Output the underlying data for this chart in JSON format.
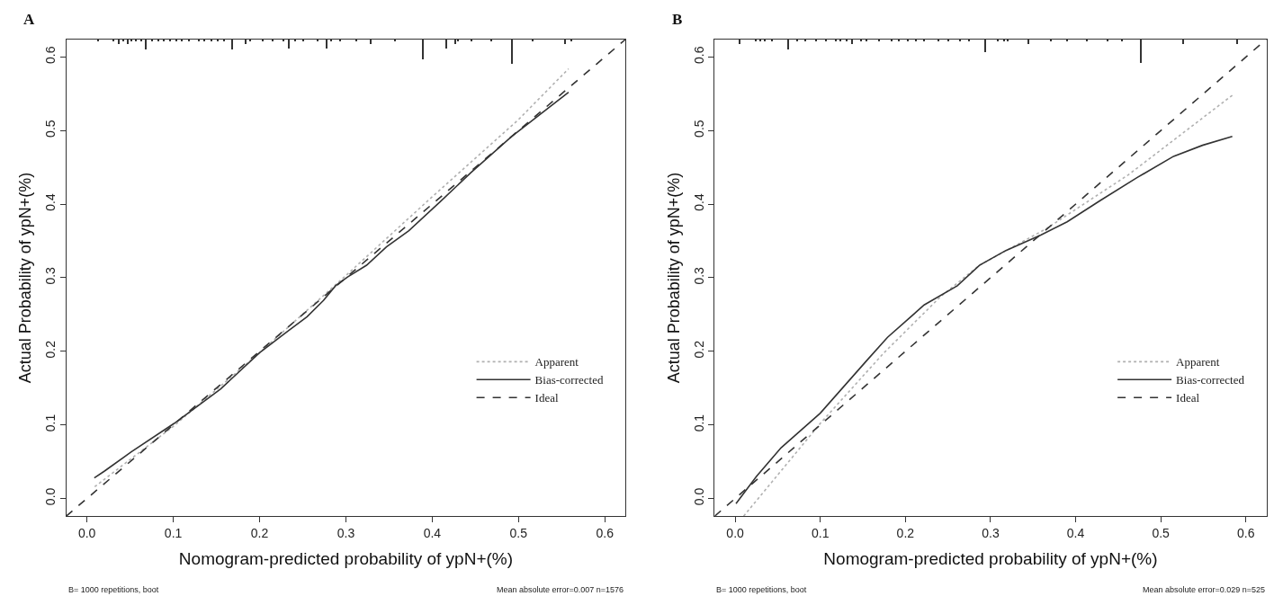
{
  "chart_data": [
    {
      "type": "line",
      "title": "A",
      "xlabel": "Nomogram-predicted probability of ypN+(%)",
      "ylabel": "Actual Probability of ypN+(%)",
      "xlim": [
        -0.024,
        0.624
      ],
      "ylim": [
        -0.024,
        0.624
      ],
      "xticks": [
        {
          "value": 0,
          "label": "0.0"
        },
        0.1,
        0.2,
        0.3,
        0.4,
        0.5,
        0.6
      ],
      "yticks": [
        {
          "value": 0,
          "label": "0.0"
        },
        0.1,
        0.2,
        0.3,
        0.4,
        0.5,
        0.6
      ],
      "legend": "bottom right",
      "marker": "none",
      "annotations": [
        "B= 1000 repetitions, boot",
        "Mean absolute error=0.007 n=1576"
      ],
      "series": [
        {
          "name": "Apparent",
          "color": "#b0b0b0",
          "line_style": "dotted",
          "x": [
            0.009,
            0.1,
            0.2,
            0.3,
            0.4,
            0.5,
            0.558
          ],
          "values": [
            0.016,
            0.098,
            0.198,
            0.303,
            0.41,
            0.515,
            0.584
          ]
        },
        {
          "name": "Bias-corrected",
          "color": "#333333",
          "line_style": "solid",
          "x": [
            0.0085,
            0.02,
            0.051,
            0.101,
            0.155,
            0.2,
            0.231,
            0.255,
            0.274,
            0.288,
            0.302,
            0.324,
            0.347,
            0.373,
            0.409,
            0.445,
            0.492,
            0.558
          ],
          "values": [
            0.028,
            0.037,
            0.063,
            0.102,
            0.149,
            0.198,
            0.226,
            0.247,
            0.269,
            0.289,
            0.301,
            0.317,
            0.342,
            0.364,
            0.403,
            0.443,
            0.492,
            0.552
          ]
        },
        {
          "name": "Ideal",
          "color": "#333333",
          "line_style": "dashed",
          "x": [
            -0.024,
            0.624
          ],
          "values": [
            -0.024,
            0.624
          ]
        },
        {
          "type": "bar",
          "color": "#333333",
          "x": [
            0.013,
            0.03,
            0.037,
            0.042,
            0.047,
            0.051,
            0.056,
            0.063,
            0.068,
            0.075,
            0.082,
            0.089,
            0.096,
            0.103,
            0.11,
            0.118,
            0.129,
            0.136,
            0.144,
            0.151,
            0.158,
            0.168,
            0.184,
            0.189,
            0.203,
            0.215,
            0.227,
            0.234,
            0.241,
            0.25,
            0.267,
            0.277,
            0.283,
            0.293,
            0.312,
            0.328,
            0.357,
            0.389,
            0.416,
            0.426,
            0.43,
            0.445,
            0.468,
            0.492,
            0.516,
            0.554,
            0.561
          ],
          "values": [
            -0.003,
            -0.003,
            -0.006,
            -0.003,
            -0.006,
            -0.003,
            -0.003,
            -0.003,
            -0.014,
            -0.003,
            -0.003,
            -0.003,
            -0.003,
            -0.003,
            -0.003,
            -0.003,
            -0.003,
            -0.003,
            -0.003,
            -0.003,
            -0.003,
            -0.014,
            -0.006,
            -0.003,
            -0.003,
            -0.003,
            -0.003,
            -0.012,
            -0.003,
            -0.003,
            -0.003,
            -0.012,
            -0.003,
            -0.003,
            -0.003,
            -0.006,
            -0.003,
            -0.027,
            -0.012,
            -0.006,
            -0.003,
            -0.003,
            -0.003,
            -0.033,
            -0.003,
            -0.006,
            -0.003
          ],
          "base": [
            0.624,
            0.624,
            0.624,
            0.624,
            0.624,
            0.624,
            0.624,
            0.624,
            0.624,
            0.624,
            0.624,
            0.624,
            0.624,
            0.624,
            0.624,
            0.624,
            0.624,
            0.624,
            0.624,
            0.624,
            0.624,
            0.624,
            0.624,
            0.624,
            0.624,
            0.624,
            0.624,
            0.624,
            0.624,
            0.624,
            0.624,
            0.624,
            0.624,
            0.624,
            0.624,
            0.624,
            0.624,
            0.624,
            0.624,
            0.624,
            0.624,
            0.624,
            0.624,
            0.624,
            0.624,
            0.624,
            0.624
          ]
        }
      ]
    },
    {
      "type": "line",
      "title": "B",
      "xlabel": "Nomogram-predicted probability of ypN+(%)",
      "ylabel": "Actual Probability of ypN+(%)",
      "xlim": [
        -0.024,
        0.624
      ],
      "ylim": [
        -0.024,
        0.624
      ],
      "xticks": [
        {
          "value": 0,
          "label": "0.0"
        },
        0.1,
        0.2,
        0.3,
        0.4,
        0.5,
        0.6
      ],
      "yticks": [
        {
          "value": 0,
          "label": "0.0"
        },
        0.1,
        0.2,
        0.3,
        0.4,
        0.5,
        0.6
      ],
      "legend": "bottom right",
      "marker": "none",
      "annotations": [
        "B= 1000 repetitions, boot",
        "Mean absolute error=0.029 n=525"
      ],
      "series": [
        {
          "name": "Apparent",
          "color": "#b0b0b0",
          "line_style": "dotted",
          "x": [
            0.01,
            0.1,
            0.174,
            0.241,
            0.287,
            0.366,
            0.462,
            0.584
          ],
          "values": [
            -0.024,
            0.102,
            0.197,
            0.274,
            0.317,
            0.367,
            0.44,
            0.548
          ]
        },
        {
          "name": "Bias-corrected",
          "color": "#333333",
          "line_style": "solid",
          "x": [
            0.001,
            0.025,
            0.054,
            0.1,
            0.155,
            0.179,
            0.222,
            0.261,
            0.287,
            0.318,
            0.359,
            0.39,
            0.429,
            0.472,
            0.515,
            0.549,
            0.584
          ],
          "values": [
            -0.007,
            0.03,
            0.069,
            0.116,
            0.188,
            0.219,
            0.263,
            0.289,
            0.317,
            0.337,
            0.358,
            0.376,
            0.405,
            0.436,
            0.465,
            0.48,
            0.492
          ]
        },
        {
          "name": "Ideal",
          "color": "#333333",
          "line_style": "dashed",
          "x": [
            -0.024,
            0.624
          ],
          "values": [
            -0.024,
            0.624
          ]
        },
        {
          "type": "bar",
          "color": "#333333",
          "x": [
            0.006,
            0.025,
            0.03,
            0.035,
            0.044,
            0.063,
            0.073,
            0.083,
            0.095,
            0.107,
            0.119,
            0.124,
            0.131,
            0.138,
            0.148,
            0.155,
            0.169,
            0.184,
            0.193,
            0.203,
            0.213,
            0.222,
            0.239,
            0.251,
            0.265,
            0.275,
            0.294,
            0.309,
            0.316,
            0.321,
            0.345,
            0.371,
            0.39,
            0.414,
            0.438,
            0.455,
            0.477,
            0.527,
            0.59
          ],
          "values": [
            -0.006,
            -0.003,
            -0.003,
            -0.003,
            -0.003,
            -0.014,
            -0.003,
            -0.003,
            -0.003,
            -0.003,
            -0.003,
            -0.003,
            -0.003,
            -0.006,
            -0.003,
            -0.003,
            -0.003,
            -0.003,
            -0.003,
            -0.003,
            -0.003,
            -0.003,
            -0.003,
            -0.003,
            -0.003,
            -0.003,
            -0.017,
            -0.003,
            -0.003,
            -0.003,
            -0.006,
            -0.003,
            -0.003,
            -0.003,
            -0.003,
            -0.003,
            -0.032,
            -0.006,
            -0.006
          ],
          "base": [
            0.624,
            0.624,
            0.624,
            0.624,
            0.624,
            0.624,
            0.624,
            0.624,
            0.624,
            0.624,
            0.624,
            0.624,
            0.624,
            0.624,
            0.624,
            0.624,
            0.624,
            0.624,
            0.624,
            0.624,
            0.624,
            0.624,
            0.624,
            0.624,
            0.624,
            0.624,
            0.624,
            0.624,
            0.624,
            0.624,
            0.624,
            0.624,
            0.624,
            0.624,
            0.624,
            0.624,
            0.624,
            0.624,
            0.624
          ]
        }
      ]
    }
  ]
}
